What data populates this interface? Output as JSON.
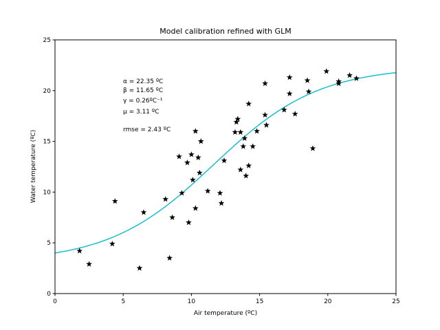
{
  "chart_data": {
    "type": "scatter",
    "title": "Model calibration refined with GLM",
    "xlabel": "Air temperature (ºC)",
    "ylabel": "Water temperature (ºC)",
    "xlim": [
      0,
      25
    ],
    "ylim": [
      0,
      25
    ],
    "xticks": [
      "0",
      "5",
      "10",
      "15",
      "20",
      "25"
    ],
    "yticks": [
      "0",
      "5",
      "10",
      "15",
      "20",
      "25"
    ],
    "grid": false,
    "colors": {
      "points": "#000000",
      "curve": "#17becf"
    },
    "annotations": [
      "α = 22.35 ºC",
      "β = 11.65 ºC",
      "γ = 0.26ºC⁻¹",
      "μ = 3.11 ºC",
      "rmse = 2.43 ºC"
    ],
    "model": {
      "alpha": 22.35,
      "beta": 11.65,
      "gamma": 0.26,
      "mu": 3.11
    },
    "series": [
      {
        "points": [
          [
            1.8,
            4.2
          ],
          [
            2.5,
            2.9
          ],
          [
            4.2,
            4.9
          ],
          [
            4.4,
            9.1
          ],
          [
            6.2,
            2.5
          ],
          [
            6.5,
            8.0
          ],
          [
            8.1,
            9.3
          ],
          [
            8.4,
            3.5
          ],
          [
            8.6,
            7.5
          ],
          [
            9.1,
            13.5
          ],
          [
            9.3,
            9.9
          ],
          [
            9.7,
            12.9
          ],
          [
            9.8,
            7.0
          ],
          [
            10.0,
            13.7
          ],
          [
            10.1,
            11.2
          ],
          [
            10.3,
            16.0
          ],
          [
            10.3,
            8.4
          ],
          [
            10.5,
            13.4
          ],
          [
            10.6,
            11.9
          ],
          [
            10.7,
            15.0
          ],
          [
            11.2,
            10.1
          ],
          [
            12.1,
            9.9
          ],
          [
            12.2,
            8.9
          ],
          [
            12.4,
            13.1
          ],
          [
            13.2,
            15.9
          ],
          [
            13.3,
            16.9
          ],
          [
            13.4,
            17.2
          ],
          [
            13.6,
            12.2
          ],
          [
            13.6,
            15.9
          ],
          [
            13.8,
            14.5
          ],
          [
            13.9,
            15.3
          ],
          [
            14.0,
            11.6
          ],
          [
            14.2,
            18.7
          ],
          [
            14.2,
            12.6
          ],
          [
            14.5,
            14.5
          ],
          [
            14.8,
            16.0
          ],
          [
            15.4,
            20.7
          ],
          [
            15.4,
            17.6
          ],
          [
            15.5,
            16.6
          ],
          [
            16.8,
            18.1
          ],
          [
            17.2,
            21.3
          ],
          [
            17.2,
            19.7
          ],
          [
            17.6,
            17.7
          ],
          [
            18.5,
            21.0
          ],
          [
            18.6,
            19.9
          ],
          [
            18.9,
            14.3
          ],
          [
            19.9,
            21.9
          ],
          [
            20.8,
            20.9
          ],
          [
            20.8,
            20.7
          ],
          [
            21.6,
            21.5
          ],
          [
            22.1,
            21.2
          ]
        ]
      }
    ]
  }
}
